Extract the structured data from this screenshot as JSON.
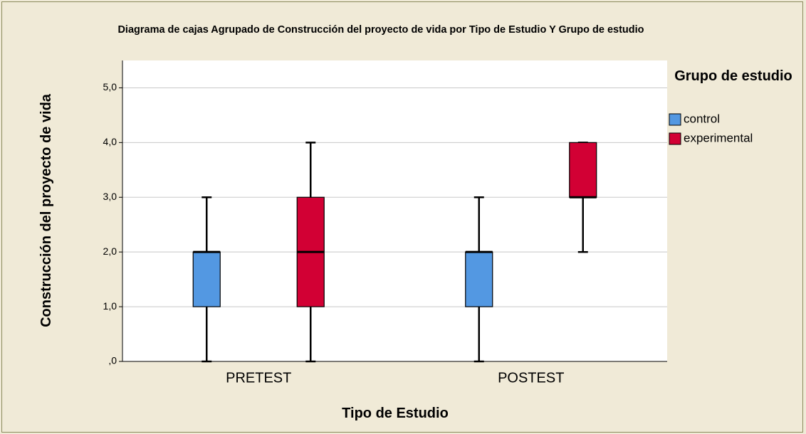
{
  "chart_data": {
    "type": "box",
    "title": "Diagrama de cajas Agrupado de Construcción del proyecto de vida  por Tipo de Estudio Y Grupo de estudio",
    "x_label": "Tipo de Estudio",
    "y_label": "Construcción del proyecto de vida",
    "legend_title": "Grupo de estudio",
    "legend_position": "right",
    "categories": [
      "PRETEST",
      "POSTEST"
    ],
    "series": [
      {
        "name": "control",
        "color": "#5398e2",
        "min": [
          0,
          0
        ],
        "q1": [
          1,
          1
        ],
        "median": [
          2,
          2
        ],
        "q3": [
          2,
          2
        ],
        "max": [
          3,
          3
        ]
      },
      {
        "name": "experimental",
        "color": "#d20034",
        "min": [
          0,
          2
        ],
        "q1": [
          1,
          3
        ],
        "median": [
          2,
          3
        ],
        "q3": [
          3,
          4
        ],
        "max": [
          4,
          4
        ]
      }
    ],
    "ylim": [
      0,
      5.5
    ],
    "yticks": [
      {
        "value": 0,
        "label": ",0"
      },
      {
        "value": 1,
        "label": "1,0"
      },
      {
        "value": 2,
        "label": "2,0"
      },
      {
        "value": 3,
        "label": "3,0"
      },
      {
        "value": 4,
        "label": "4,0"
      },
      {
        "value": 5,
        "label": "5,0"
      }
    ],
    "grid": true
  }
}
